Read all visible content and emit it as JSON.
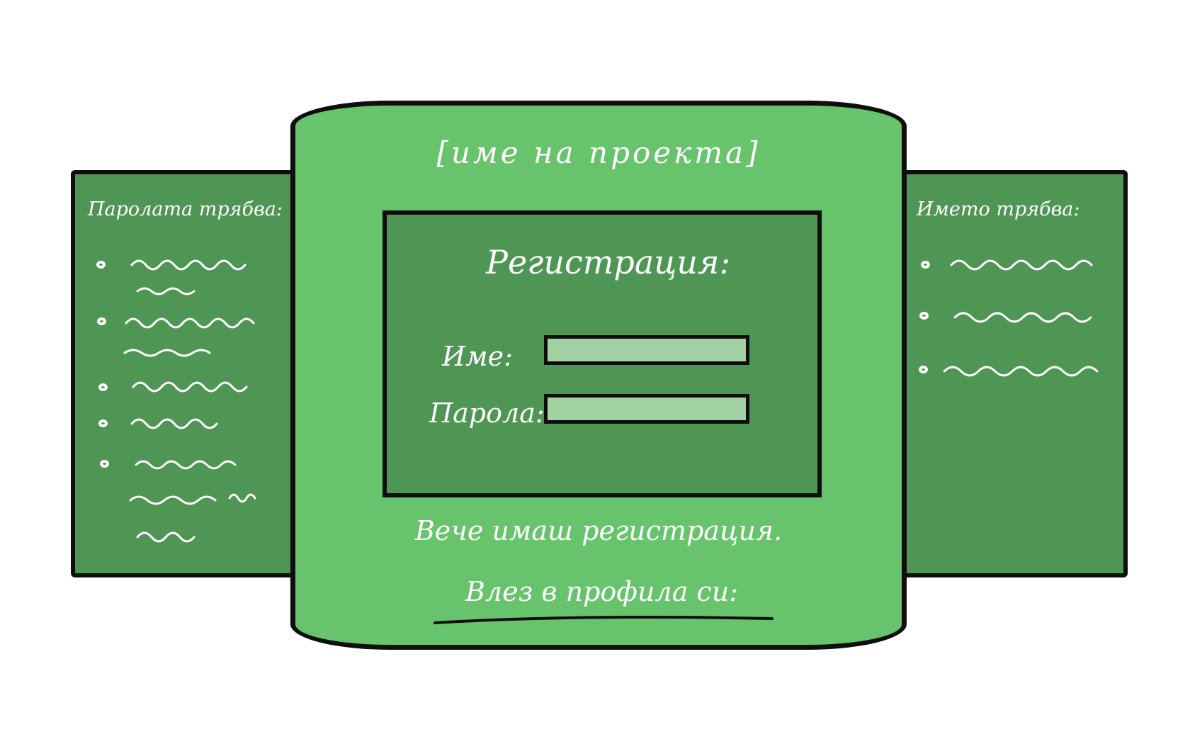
{
  "project_title": "[име на проекта]",
  "registration": {
    "title": "Регистрация:",
    "name_label": "Име:",
    "password_label": "Парола:",
    "name_value": "",
    "password_value": ""
  },
  "already_registered_text": "Вече имаш регистрация.",
  "login_link_text": "Влез в профила си:",
  "password_requirements": {
    "title": "Паролата трябва:"
  },
  "name_requirements": {
    "title": "Името трябва:"
  },
  "colors": {
    "card": "#67c46d",
    "panel": "#4f9655",
    "input": "#a2d1a3",
    "outline": "#0e0e0e"
  }
}
